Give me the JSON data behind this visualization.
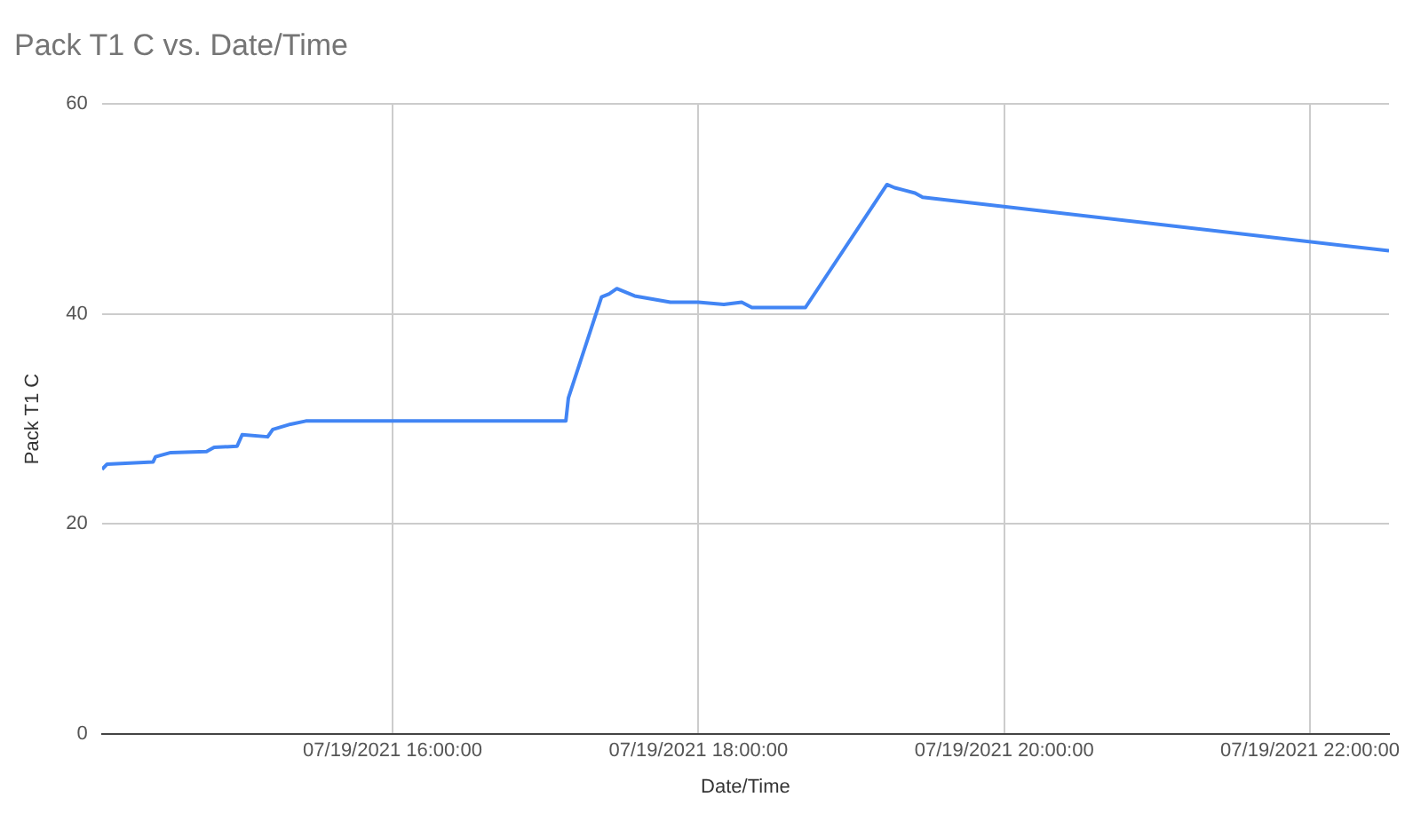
{
  "chart_data": {
    "type": "line",
    "title": "Pack T1 C vs. Date/Time",
    "xlabel": "Date/Time",
    "ylabel": "Pack T1 C",
    "x": [
      "2021-07-19T14:06",
      "2021-07-19T14:08",
      "2021-07-19T14:26",
      "2021-07-19T14:27",
      "2021-07-19T14:33",
      "2021-07-19T14:47",
      "2021-07-19T14:50",
      "2021-07-19T14:59",
      "2021-07-19T15:01",
      "2021-07-19T15:11",
      "2021-07-19T15:13",
      "2021-07-19T15:20",
      "2021-07-19T15:26",
      "2021-07-19T17:08",
      "2021-07-19T17:09",
      "2021-07-19T17:22",
      "2021-07-19T17:25",
      "2021-07-19T17:28",
      "2021-07-19T17:35",
      "2021-07-19T17:49",
      "2021-07-19T18:00",
      "2021-07-19T18:10",
      "2021-07-19T18:17",
      "2021-07-19T18:21",
      "2021-07-19T18:31",
      "2021-07-19T18:42",
      "2021-07-19T19:14",
      "2021-07-19T19:17",
      "2021-07-19T19:25",
      "2021-07-19T19:28",
      "2021-07-19T22:31"
    ],
    "series": [
      {
        "color": "#4285f4",
        "values": [
          25.2,
          25.7,
          25.9,
          26.4,
          26.8,
          26.9,
          27.3,
          27.4,
          28.5,
          28.3,
          29.0,
          29.5,
          29.8,
          29.8,
          32.0,
          41.6,
          41.9,
          42.4,
          41.7,
          41.1,
          41.1,
          40.9,
          41.1,
          40.6,
          40.6,
          40.6,
          52.3,
          52.0,
          51.5,
          51.1,
          46.0
        ]
      }
    ],
    "xlim": [
      "2021-07-19T14:06",
      "2021-07-19T22:31"
    ],
    "xticks": [
      {
        "value": "2021-07-19T16:00",
        "label": "07/19/2021 16:00:00"
      },
      {
        "value": "2021-07-19T18:00",
        "label": "07/19/2021 18:00:00"
      },
      {
        "value": "2021-07-19T20:00",
        "label": "07/19/2021 20:00:00"
      },
      {
        "value": "2021-07-19T22:00",
        "label": "07/19/2021 22:00:00"
      }
    ],
    "ylim": [
      0,
      60
    ],
    "yticks": [
      0,
      20,
      40,
      60
    ],
    "grid": true,
    "legend": false,
    "marker": "none",
    "line_style": "solid"
  }
}
